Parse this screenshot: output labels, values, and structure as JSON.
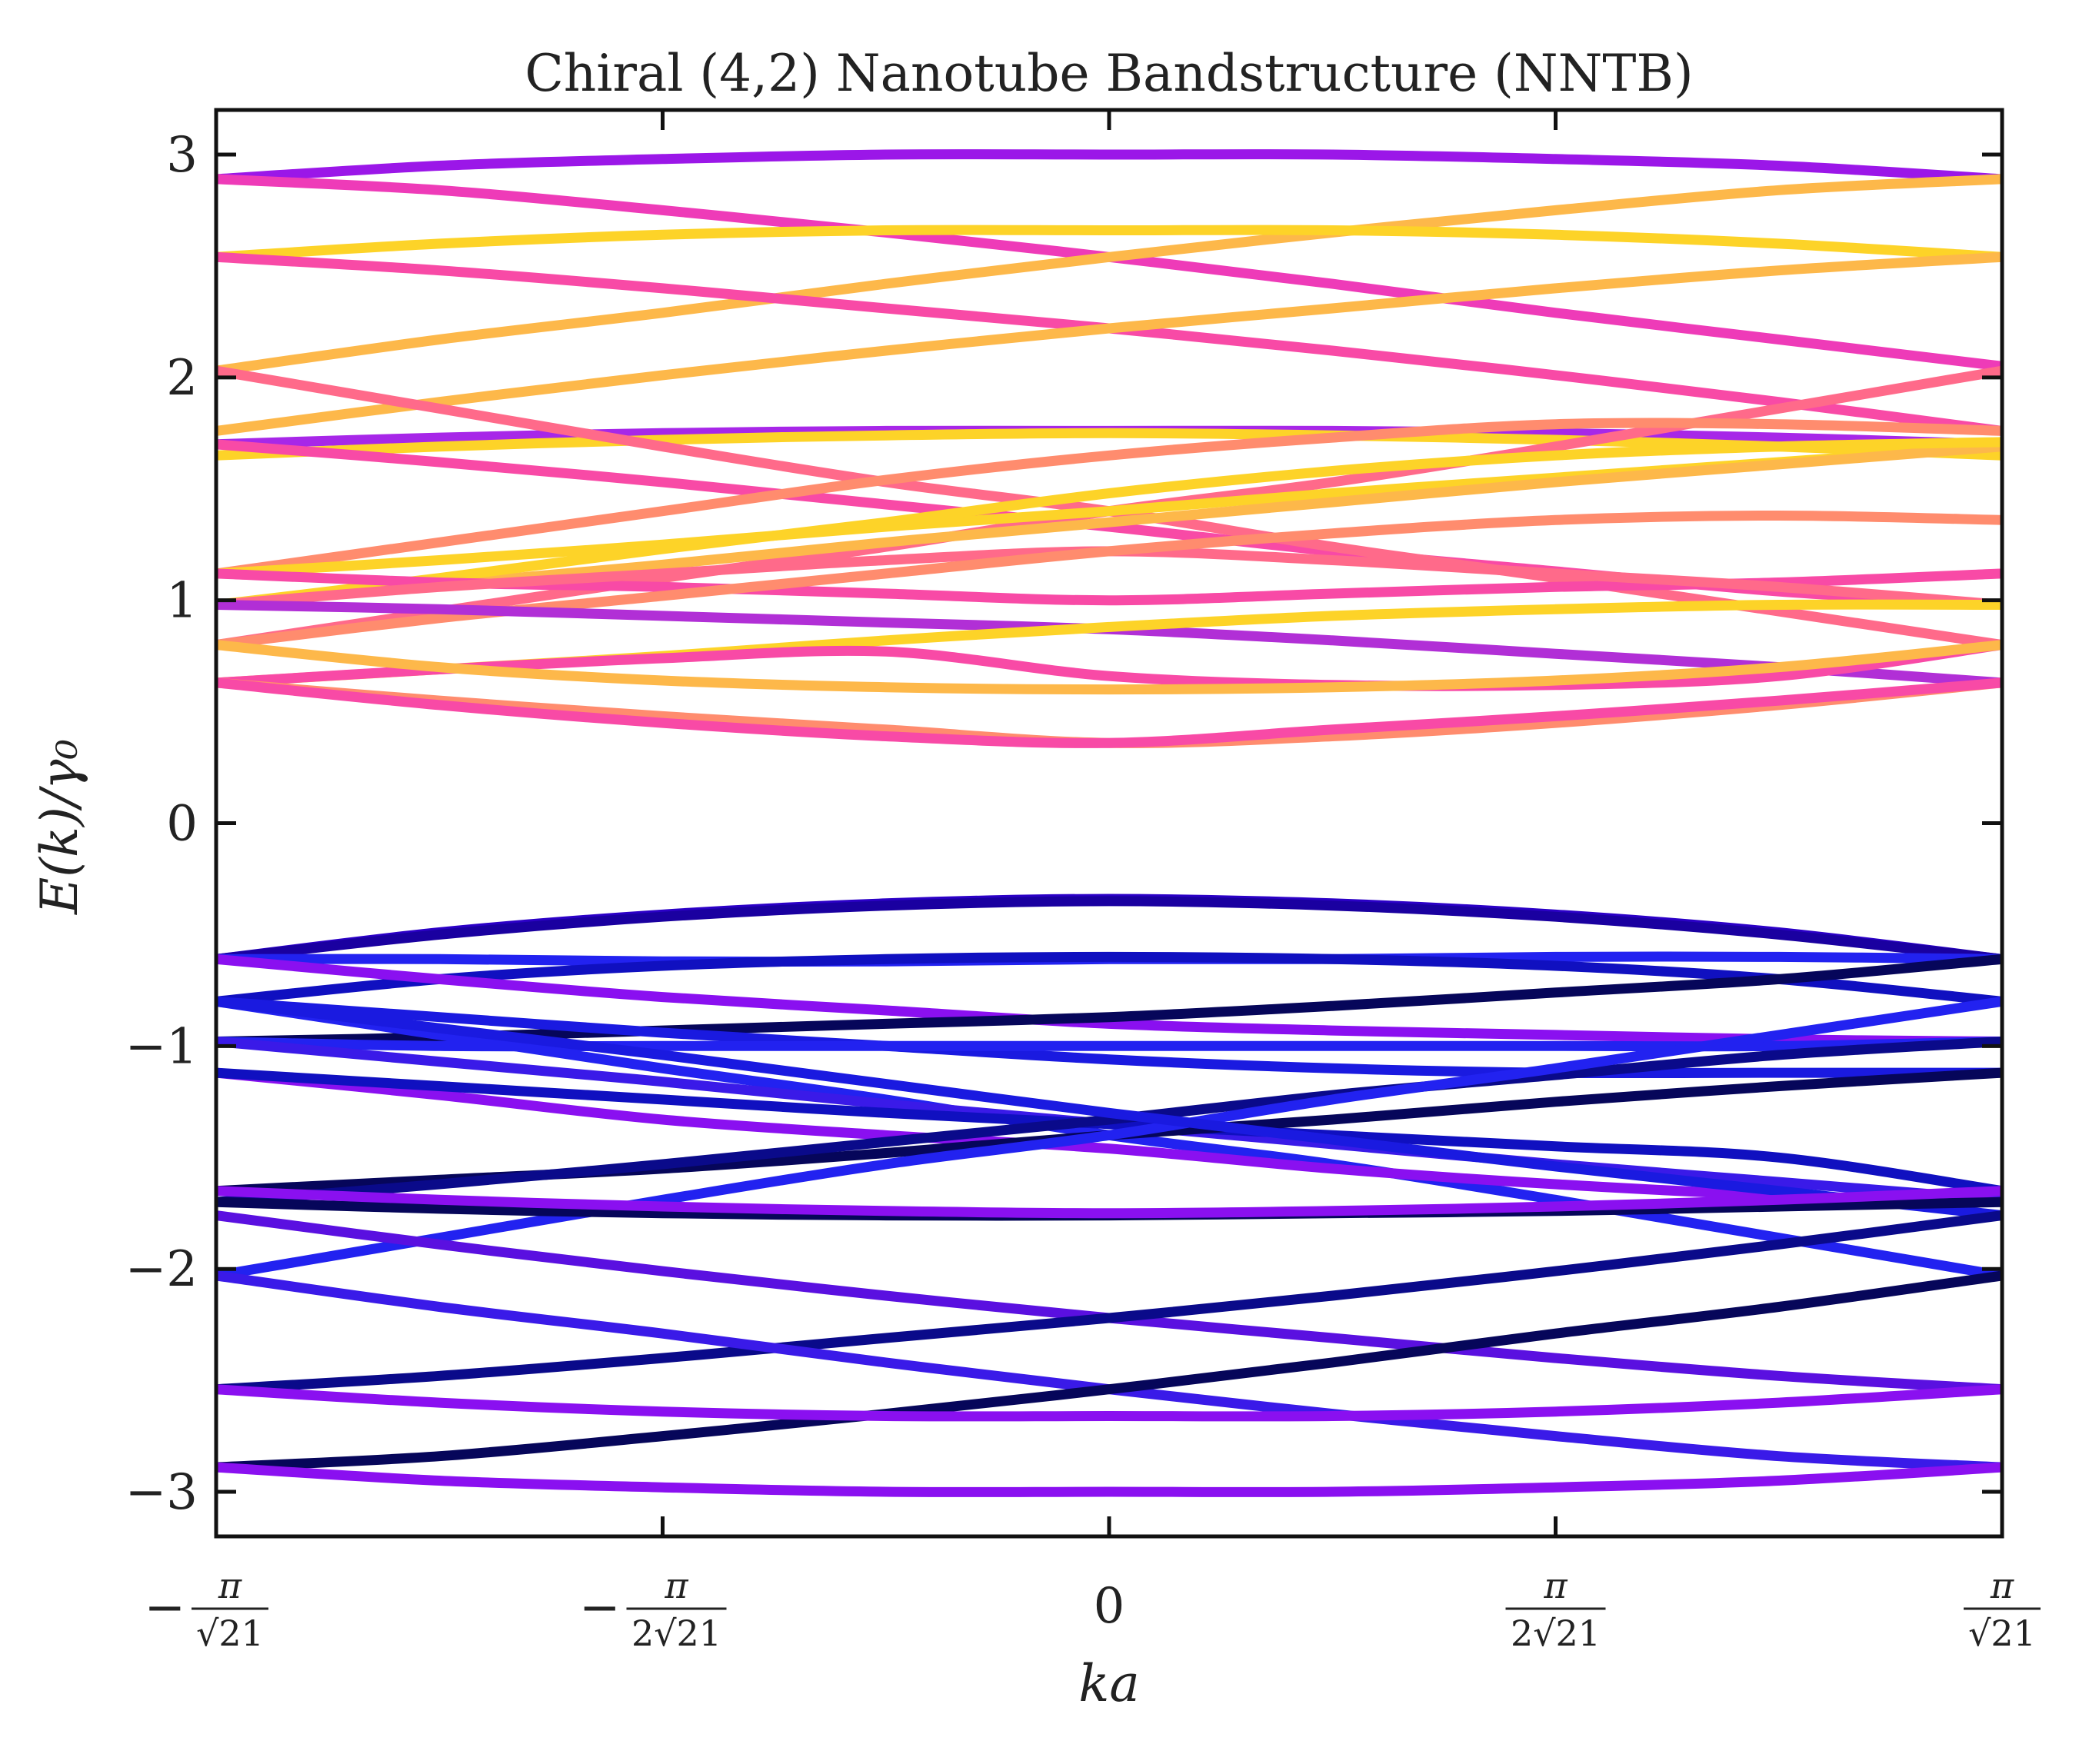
{
  "chart_data": {
    "type": "line",
    "title": "Chiral (4,2) Nanotube Bandstructure (NNTB)",
    "xlabel": "ka",
    "ylabel": "E(k)/γ₀",
    "xlim": [
      -1,
      1
    ],
    "ylim": [
      -3.2,
      3.2
    ],
    "x_unit_note": "k in units of π/√21",
    "x_ticks": [
      {
        "value": -1,
        "label_prefix": "−",
        "numerator": "π",
        "denominator": "√21"
      },
      {
        "value": -0.5,
        "label_prefix": "−",
        "numerator": "π",
        "denominator": "2√21"
      },
      {
        "value": 0,
        "label_prefix": "",
        "numerator": "",
        "denominator": "",
        "plain": "0"
      },
      {
        "value": 0.5,
        "label_prefix": "",
        "numerator": "π",
        "denominator": "2√21"
      },
      {
        "value": 1,
        "label_prefix": "",
        "numerator": "π",
        "denominator": "√21"
      }
    ],
    "y_ticks": [
      {
        "value": 3,
        "label": "3"
      },
      {
        "value": 2,
        "label": "2"
      },
      {
        "value": 1,
        "label": "1"
      },
      {
        "value": 0,
        "label": "0"
      },
      {
        "value": -1,
        "label": "−1"
      },
      {
        "value": -2,
        "label": "−2"
      },
      {
        "value": -3,
        "label": "−3"
      }
    ],
    "grid": false,
    "legend": "none",
    "x": [
      -1,
      -0.75,
      -0.5,
      -0.25,
      0,
      0.25,
      0.5,
      0.75,
      1
    ],
    "series": [
      {
        "color": "#9b17e8",
        "values": [
          2.89,
          2.95,
          2.98,
          3.0,
          3.0,
          3.0,
          2.98,
          2.95,
          2.89
        ]
      },
      {
        "color": "#ee3bb8",
        "values": [
          2.89,
          2.84,
          2.75,
          2.65,
          2.54,
          2.42,
          2.29,
          2.17,
          2.05
        ]
      },
      {
        "color": "#fdb84a",
        "values": [
          2.03,
          2.17,
          2.29,
          2.42,
          2.54,
          2.65,
          2.75,
          2.84,
          2.89
        ]
      },
      {
        "color": "#fdd328",
        "values": [
          2.54,
          2.6,
          2.64,
          2.66,
          2.66,
          2.66,
          2.64,
          2.6,
          2.54
        ]
      },
      {
        "color": "#f84aa6",
        "values": [
          2.54,
          2.48,
          2.4,
          2.31,
          2.22,
          2.12,
          2.01,
          1.89,
          1.76
        ]
      },
      {
        "color": "#fdb84a",
        "values": [
          1.76,
          1.89,
          2.01,
          2.12,
          2.22,
          2.31,
          2.4,
          2.48,
          2.54
        ]
      },
      {
        "color": "#a727e8",
        "values": [
          1.7,
          1.73,
          1.75,
          1.76,
          1.76,
          1.76,
          1.75,
          1.73,
          1.7
        ]
      },
      {
        "color": "#fdd328",
        "values": [
          1.65,
          1.69,
          1.72,
          1.74,
          1.75,
          1.74,
          1.72,
          1.69,
          1.65
        ]
      },
      {
        "color": "#f84aa6",
        "values": [
          1.7,
          1.62,
          1.53,
          1.43,
          1.33,
          1.22,
          1.13,
          1.04,
          0.98
        ]
      },
      {
        "color": "#ff6a8a",
        "values": [
          2.03,
          1.86,
          1.69,
          1.53,
          1.4,
          1.24,
          1.1,
          0.95,
          0.8
        ]
      },
      {
        "color": "#ff6a8a",
        "values": [
          0.8,
          0.95,
          1.1,
          1.24,
          1.4,
          1.53,
          1.69,
          1.86,
          2.03
        ]
      },
      {
        "color": "#ff8c6e",
        "values": [
          1.12,
          1.26,
          1.4,
          1.54,
          1.65,
          1.73,
          1.79,
          1.79,
          1.76
        ]
      },
      {
        "color": "#fdd328",
        "values": [
          1.12,
          1.18,
          1.25,
          1.33,
          1.4,
          1.48,
          1.55,
          1.62,
          1.69
        ]
      },
      {
        "color": "#fdb84a",
        "values": [
          0.98,
          1.07,
          1.16,
          1.26,
          1.35,
          1.44,
          1.53,
          1.61,
          1.69
        ]
      },
      {
        "color": "#fdd328",
        "values": [
          0.98,
          1.1,
          1.23,
          1.35,
          1.48,
          1.58,
          1.65,
          1.69,
          1.71
        ]
      },
      {
        "color": "#f84aa6",
        "values": [
          1.12,
          1.08,
          1.06,
          1.03,
          1.0,
          1.03,
          1.06,
          1.08,
          1.12
        ]
      },
      {
        "color": "#ff6a8a",
        "values": [
          0.98,
          1.06,
          1.12,
          1.18,
          1.22,
          1.18,
          1.12,
          1.06,
          0.98
        ]
      },
      {
        "color": "#ff8c6e",
        "values": [
          0.8,
          0.92,
          1.02,
          1.12,
          1.22,
          1.3,
          1.36,
          1.38,
          1.36
        ]
      },
      {
        "color": "#b12fd6",
        "values": [
          0.98,
          0.96,
          0.93,
          0.9,
          0.87,
          0.82,
          0.76,
          0.7,
          0.63
        ]
      },
      {
        "color": "#fdd328",
        "values": [
          0.63,
          0.69,
          0.75,
          0.82,
          0.88,
          0.93,
          0.96,
          0.98,
          0.98
        ]
      },
      {
        "color": "#f84aa6",
        "values": [
          0.63,
          0.69,
          0.74,
          0.77,
          0.66,
          0.62,
          0.62,
          0.66,
          0.8
        ]
      },
      {
        "color": "#fdb84a",
        "values": [
          0.8,
          0.7,
          0.64,
          0.61,
          0.6,
          0.61,
          0.64,
          0.7,
          0.8
        ]
      },
      {
        "color": "#ff8c6e",
        "values": [
          0.63,
          0.55,
          0.48,
          0.42,
          0.36,
          0.39,
          0.45,
          0.53,
          0.63
        ]
      },
      {
        "color": "#f84aa6",
        "values": [
          0.63,
          0.53,
          0.45,
          0.39,
          0.36,
          0.42,
          0.48,
          0.55,
          0.63
        ]
      },
      {
        "color": "#2b00c6",
        "values": [
          -0.61,
          -0.49,
          -0.41,
          -0.36,
          -0.34,
          -0.36,
          -0.41,
          -0.49,
          -0.61
        ]
      },
      {
        "color": "#1a00a0",
        "values": [
          -0.61,
          -0.5,
          -0.42,
          -0.37,
          -0.35,
          -0.37,
          -0.42,
          -0.5,
          -0.61
        ]
      },
      {
        "color": "#2222f0",
        "values": [
          -0.61,
          -0.61,
          -0.62,
          -0.62,
          -0.61,
          -0.61,
          -0.6,
          -0.6,
          -0.61
        ]
      },
      {
        "color": "#1010c0",
        "values": [
          -0.8,
          -0.7,
          -0.64,
          -0.61,
          -0.6,
          -0.61,
          -0.64,
          -0.7,
          -0.8
        ]
      },
      {
        "color": "#8a10f0",
        "values": [
          -0.61,
          -0.7,
          -0.78,
          -0.84,
          -0.9,
          -0.93,
          -0.95,
          -0.97,
          -0.98
        ]
      },
      {
        "color": "#06065a",
        "values": [
          -0.98,
          -0.96,
          -0.93,
          -0.9,
          -0.87,
          -0.82,
          -0.76,
          -0.7,
          -0.61
        ]
      },
      {
        "color": "#2222f0",
        "values": [
          -0.8,
          -0.95,
          -1.1,
          -1.24,
          -1.4,
          -1.53,
          -1.69,
          -1.86,
          -2.03
        ]
      },
      {
        "color": "#1a1ae0",
        "values": [
          -0.8,
          -0.87,
          -0.94,
          -1.0,
          -1.06,
          -1.1,
          -1.12,
          -1.12,
          -1.12
        ]
      },
      {
        "color": "#2222f0",
        "values": [
          -0.98,
          -1.0,
          -1.0,
          -1.0,
          -1.0,
          -1.0,
          -1.0,
          -1.0,
          -0.98
        ]
      },
      {
        "color": "#3a1ae8",
        "values": [
          -0.98,
          -1.07,
          -1.16,
          -1.26,
          -1.35,
          -1.44,
          -1.53,
          -1.61,
          -1.69
        ]
      },
      {
        "color": "#8a10f0",
        "values": [
          -1.12,
          -1.22,
          -1.33,
          -1.4,
          -1.46,
          -1.55,
          -1.62,
          -1.67,
          -1.7
        ]
      },
      {
        "color": "#1010c0",
        "values": [
          -1.12,
          -1.18,
          -1.24,
          -1.3,
          -1.35,
          -1.4,
          -1.45,
          -1.5,
          -1.65
        ]
      },
      {
        "color": "#06065a",
        "values": [
          -1.65,
          -1.6,
          -1.55,
          -1.48,
          -1.4,
          -1.33,
          -1.25,
          -1.18,
          -1.12
        ]
      },
      {
        "color": "#0a0a8a",
        "values": [
          -1.7,
          -1.62,
          -1.53,
          -1.43,
          -1.33,
          -1.22,
          -1.13,
          -1.04,
          -0.98
        ]
      },
      {
        "color": "#2222f0",
        "values": [
          -2.03,
          -1.86,
          -1.69,
          -1.53,
          -1.4,
          -1.24,
          -1.1,
          -0.95,
          -0.8
        ]
      },
      {
        "color": "#1a1ae0",
        "values": [
          -0.8,
          -0.92,
          -1.04,
          -1.17,
          -1.3,
          -1.42,
          -1.54,
          -1.65,
          -1.76
        ]
      },
      {
        "color": "#06065a",
        "values": [
          -1.7,
          -1.73,
          -1.75,
          -1.76,
          -1.76,
          -1.75,
          -1.74,
          -1.72,
          -1.7
        ]
      },
      {
        "color": "#8a10f0",
        "values": [
          -1.65,
          -1.69,
          -1.72,
          -1.74,
          -1.75,
          -1.74,
          -1.72,
          -1.69,
          -1.65
        ]
      },
      {
        "color": "#5a10e0",
        "values": [
          -1.76,
          -1.89,
          -2.01,
          -2.12,
          -2.22,
          -2.31,
          -2.4,
          -2.48,
          -2.54
        ]
      },
      {
        "color": "#0a0a8a",
        "values": [
          -2.54,
          -2.48,
          -2.4,
          -2.31,
          -2.22,
          -2.12,
          -2.01,
          -1.89,
          -1.76
        ]
      },
      {
        "color": "#3a1ae8",
        "values": [
          -2.03,
          -2.17,
          -2.29,
          -2.42,
          -2.54,
          -2.65,
          -2.75,
          -2.84,
          -2.89
        ]
      },
      {
        "color": "#06065a",
        "values": [
          -2.89,
          -2.84,
          -2.75,
          -2.65,
          -2.54,
          -2.42,
          -2.29,
          -2.17,
          -2.03
        ]
      },
      {
        "color": "#8a10f0",
        "values": [
          -2.54,
          -2.6,
          -2.64,
          -2.66,
          -2.66,
          -2.66,
          -2.64,
          -2.6,
          -2.54
        ]
      },
      {
        "color": "#8a10f0",
        "values": [
          -2.89,
          -2.95,
          -2.98,
          -3.0,
          -3.0,
          -3.0,
          -2.98,
          -2.95,
          -2.89
        ]
      }
    ]
  }
}
